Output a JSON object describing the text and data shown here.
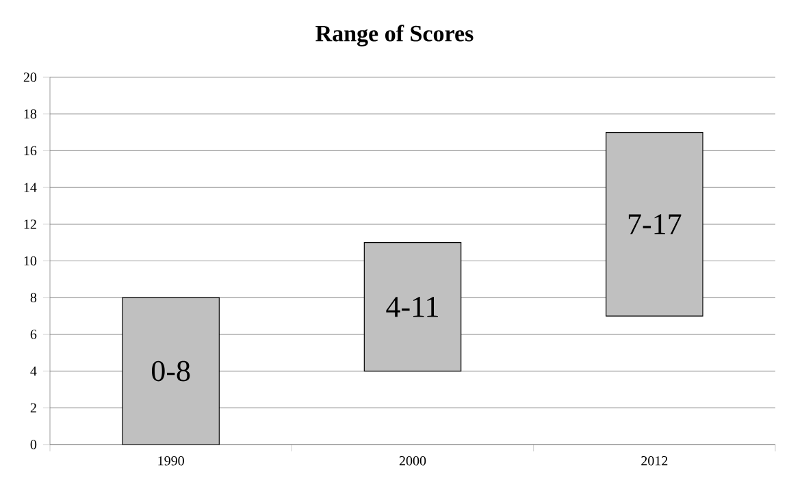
{
  "chart_data": {
    "type": "bar",
    "title": "Range of Scores",
    "categories": [
      "1990",
      "2000",
      "2012"
    ],
    "base": [
      0,
      4,
      7
    ],
    "values": [
      8,
      7,
      10
    ],
    "value_labels": [
      "0-8",
      "4-11",
      "7-17"
    ],
    "color": "#c0c0c0",
    "ylim": [
      0,
      20
    ],
    "yticks": [
      0,
      2,
      4,
      6,
      8,
      10,
      12,
      14,
      16,
      18,
      20
    ],
    "grid": "y"
  }
}
